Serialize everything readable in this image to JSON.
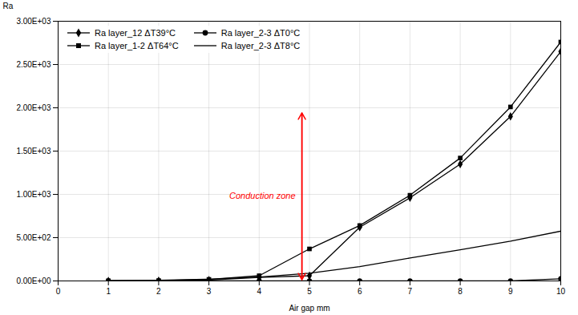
{
  "chart_data": {
    "type": "line",
    "x": [
      1,
      2,
      3,
      4,
      5,
      6,
      7,
      8,
      9,
      10
    ],
    "series": [
      {
        "name": "Ra layer_12 ΔT39°C",
        "color": "black",
        "marker": "diamond",
        "values": [
          0,
          2,
          10,
          40,
          60,
          620,
          960,
          1350,
          1900,
          2650
        ]
      },
      {
        "name": "Ra layer_1-2 ΔT64°C",
        "color": "black",
        "marker": "square",
        "values": [
          2,
          4,
          18,
          60,
          370,
          640,
          990,
          1420,
          2010,
          2760
        ]
      },
      {
        "name": "Ra layer_2-3 ΔT0°C",
        "color": "black",
        "marker": "circle",
        "values": [
          0,
          0,
          0,
          0,
          0,
          0,
          0,
          0,
          0,
          25
        ]
      },
      {
        "name": "Ra layer_2-3 ΔT8°C",
        "color": "black",
        "marker": "none",
        "values": [
          3,
          8,
          20,
          45,
          90,
          165,
          265,
          360,
          460,
          575
        ]
      }
    ],
    "xlim": [
      0,
      10
    ],
    "xticks": [
      0,
      1,
      2,
      3,
      4,
      5,
      6,
      7,
      8,
      9,
      10
    ],
    "ylim": [
      0,
      3000
    ],
    "yticks": [
      {
        "value": 0,
        "label": "0.00E+00"
      },
      {
        "value": 500,
        "label": "5.00E+02"
      },
      {
        "value": 1000,
        "label": "1.00E+03"
      },
      {
        "value": 1500,
        "label": "1.50E+03"
      },
      {
        "value": 2000,
        "label": "2.00E+03"
      },
      {
        "value": 2500,
        "label": "2.50E+03"
      },
      {
        "value": 3000,
        "label": "3.00E+03"
      }
    ],
    "xlabel": "Air gap mm",
    "ylabel": "Ra",
    "grid": true,
    "legend": "upper left",
    "annotations": [
      {
        "text": "Conduction zone",
        "x": 4.85,
        "y_top": 1940,
        "y_bottom": 15,
        "color": "red"
      }
    ]
  }
}
